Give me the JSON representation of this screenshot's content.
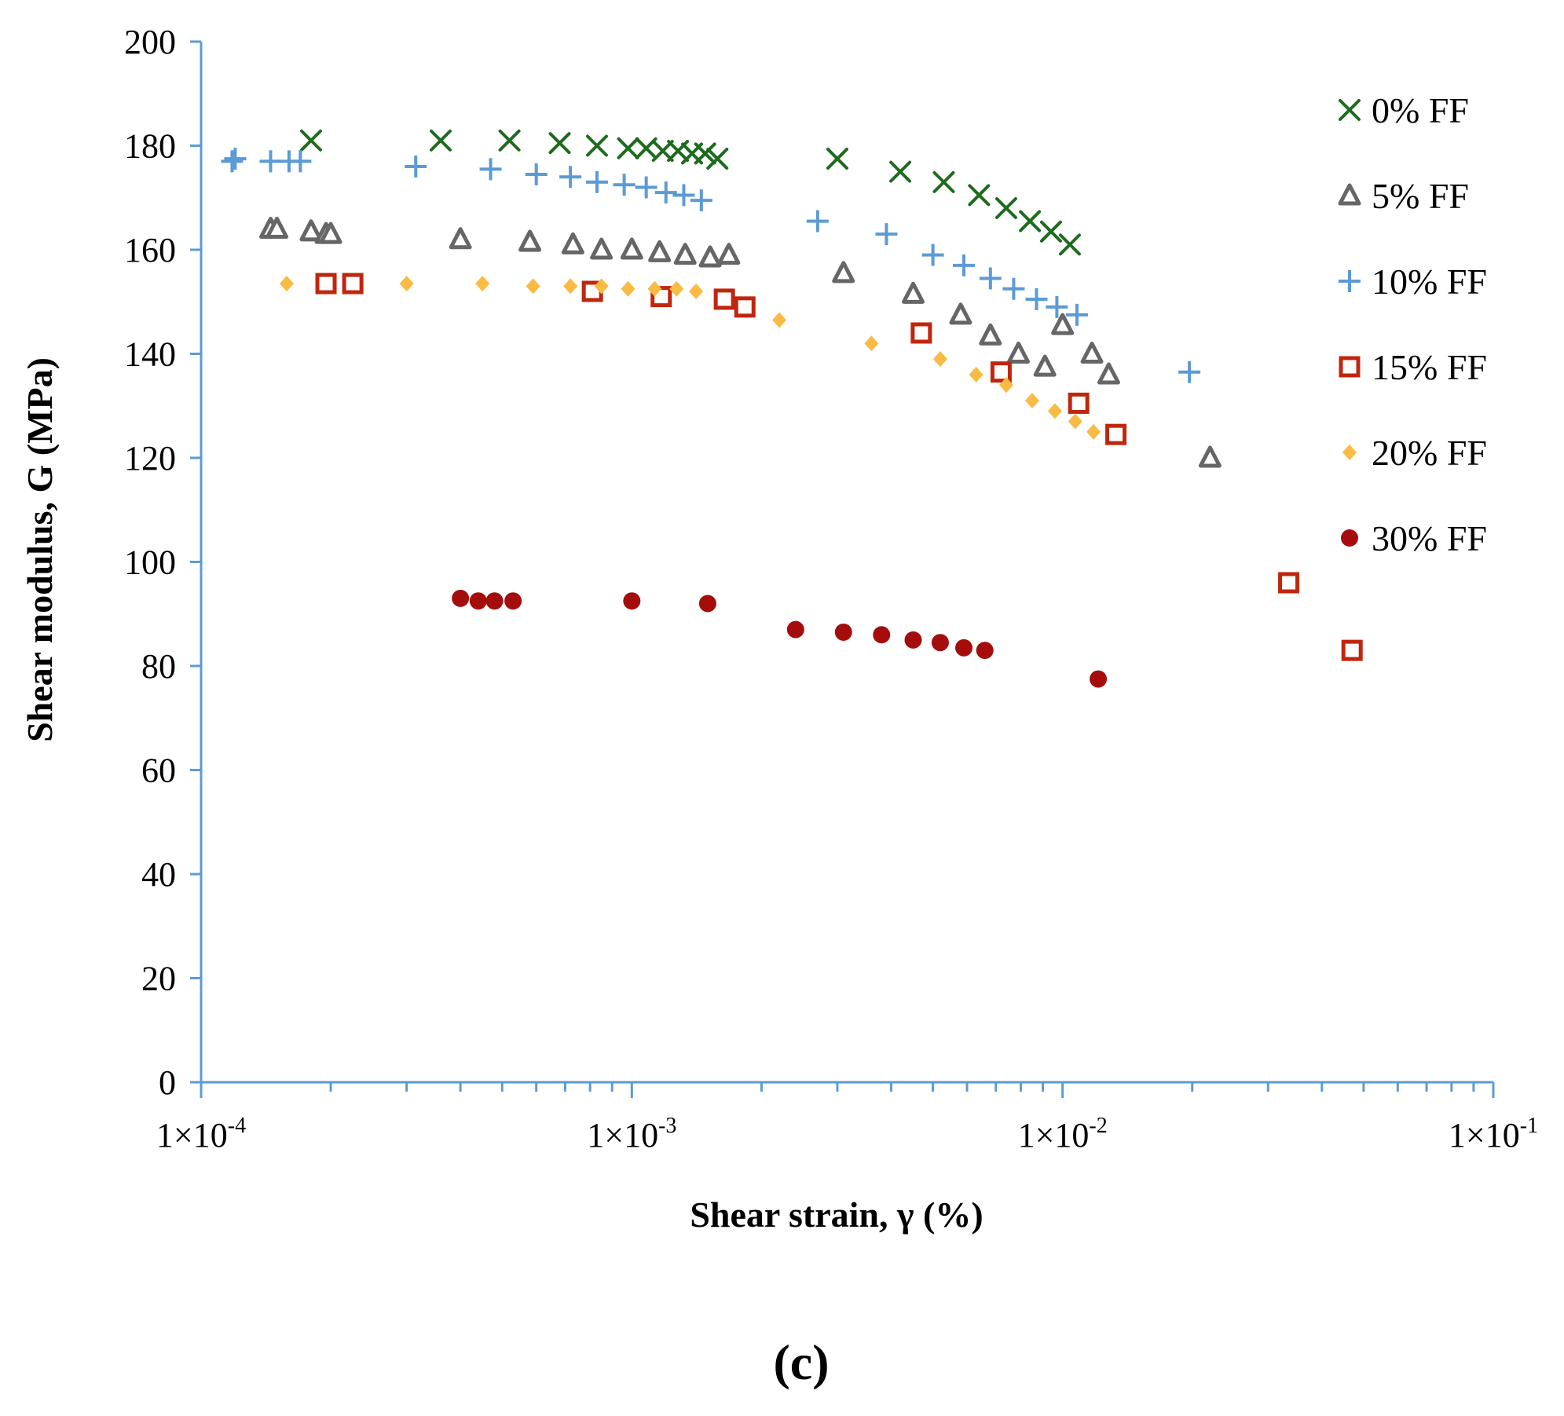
{
  "chart_data": {
    "type": "scatter",
    "xscale": "log",
    "xlim": [
      0.0001,
      0.1
    ],
    "ylim": [
      0,
      200
    ],
    "xlabel": "Shear strain, γ (%)",
    "ylabel": "Shear modulus, G (MPa)",
    "caption": "(c)",
    "axis_color": "#5B9BD5",
    "x_ticks": [
      {
        "value": 0.0001,
        "mantissa": "1",
        "base": "10",
        "exponent": "-4"
      },
      {
        "value": 0.001,
        "mantissa": "1",
        "base": "10",
        "exponent": "-3"
      },
      {
        "value": 0.01,
        "mantissa": "1",
        "base": "10",
        "exponent": "-2"
      },
      {
        "value": 0.1,
        "mantissa": "1",
        "base": "10",
        "exponent": "-1"
      }
    ],
    "y_ticks": [
      0,
      20,
      40,
      60,
      80,
      100,
      120,
      140,
      160,
      180,
      200
    ],
    "legend_position": "right",
    "series": [
      {
        "name": "0% FF",
        "marker": "x",
        "color": "#1E6B1E",
        "x": [
          0.00018,
          0.00036,
          0.00052,
          0.00068,
          0.00083,
          0.00098,
          0.00108,
          0.00118,
          0.00128,
          0.00138,
          0.00148,
          0.00158,
          0.003,
          0.0042,
          0.0053,
          0.0064,
          0.0074,
          0.0084,
          0.0094,
          0.0104
        ],
        "y": [
          181,
          181,
          181,
          180.5,
          180,
          179.5,
          179.5,
          179,
          179,
          178.5,
          178.5,
          177.5,
          177.5,
          175,
          173,
          170.5,
          168,
          165.5,
          163.5,
          161
        ]
      },
      {
        "name": "5% FF",
        "marker": "triangle",
        "color": "#666666",
        "x": [
          0.000145,
          0.00015,
          0.00018,
          0.000195,
          0.0002,
          0.0004,
          0.00058,
          0.00073,
          0.00085,
          0.001,
          0.00116,
          0.00133,
          0.00152,
          0.00168,
          0.0031,
          0.0045,
          0.0058,
          0.0068,
          0.0079,
          0.0091,
          0.01,
          0.0117,
          0.0128,
          0.022
        ],
        "y": [
          164,
          164,
          163.5,
          163,
          163,
          162,
          161.5,
          161,
          160,
          160,
          159.5,
          159,
          158.5,
          159,
          155.5,
          151.5,
          147.5,
          143.5,
          140,
          137.5,
          145.5,
          140,
          136,
          120
        ]
      },
      {
        "name": "10% FF",
        "marker": "plus",
        "color": "#5B9BD5",
        "x": [
          0.000118,
          0.00012,
          0.000145,
          0.00016,
          0.00017,
          0.000315,
          0.00047,
          0.0006,
          0.00072,
          0.00083,
          0.00096,
          0.00108,
          0.0012,
          0.00132,
          0.00145,
          0.0027,
          0.0039,
          0.005,
          0.0059,
          0.0068,
          0.0077,
          0.0087,
          0.0097,
          0.0108,
          0.0197
        ],
        "y": [
          177,
          177.5,
          177,
          177,
          177,
          176,
          175.5,
          174.5,
          174,
          173,
          172.5,
          172,
          171,
          170.5,
          169.5,
          165.5,
          163,
          159,
          157,
          154.5,
          152.5,
          150.5,
          149,
          147.5,
          136.5
        ]
      },
      {
        "name": "15% FF",
        "marker": "square",
        "color": "#C0260E",
        "x": [
          0.000195,
          0.000225,
          0.00081,
          0.00117,
          0.00164,
          0.00183,
          0.0047,
          0.0072,
          0.0109,
          0.0133,
          0.0335,
          0.047
        ],
        "y": [
          153.5,
          153.5,
          152,
          151,
          150.5,
          149,
          144,
          136.5,
          130.5,
          124.5,
          96,
          83
        ]
      },
      {
        "name": "20% FF",
        "marker": "diamond",
        "color": "#F9BB43",
        "x": [
          0.000158,
          0.0003,
          0.00045,
          0.00059,
          0.00072,
          0.00085,
          0.00098,
          0.00113,
          0.00127,
          0.00141,
          0.0022,
          0.0036,
          0.0052,
          0.0063,
          0.0074,
          0.0085,
          0.0096,
          0.0107,
          0.0118
        ],
        "y": [
          153.5,
          153.5,
          153.5,
          153,
          153,
          153,
          152.5,
          152.5,
          152.5,
          152,
          146.5,
          142,
          139,
          136,
          134,
          131,
          129,
          127,
          125
        ]
      },
      {
        "name": "30% FF",
        "marker": "circle",
        "color": "#A50D0D",
        "x": [
          0.0004,
          0.00044,
          0.00048,
          0.00053,
          0.001,
          0.0015,
          0.0024,
          0.0031,
          0.0038,
          0.0045,
          0.0052,
          0.0059,
          0.0066,
          0.0121
        ],
        "y": [
          93,
          92.5,
          92.5,
          92.5,
          92.5,
          92,
          87,
          86.5,
          86,
          85,
          84.5,
          83.5,
          83,
          77.5
        ]
      }
    ]
  }
}
